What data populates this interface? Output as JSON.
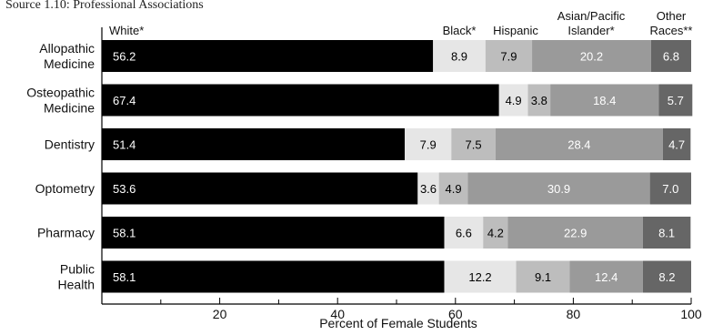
{
  "source_title": "Source 1.10: Professional Associations",
  "chart_data": {
    "type": "bar",
    "orientation": "horizontal",
    "stacked": true,
    "categories": [
      [
        "Allopathic",
        "Medicine"
      ],
      [
        "Osteopathic",
        "Medicine"
      ],
      [
        "Dentistry"
      ],
      [
        "Optometry"
      ],
      [
        "Pharmacy"
      ],
      [
        "Public",
        "Health"
      ]
    ],
    "series": [
      {
        "name": [
          "White*"
        ],
        "values": [
          56.2,
          67.4,
          51.4,
          53.6,
          58.1,
          58.1
        ],
        "color": "#000000",
        "text_color": "#ffffff"
      },
      {
        "name": [
          "Black*"
        ],
        "values": [
          8.9,
          4.9,
          7.9,
          3.6,
          6.6,
          12.2
        ],
        "color": "#e6e6e6",
        "text_color": "#000000"
      },
      {
        "name": [
          "Hispanic"
        ],
        "values": [
          7.9,
          3.8,
          7.5,
          4.9,
          4.2,
          9.1
        ],
        "color": "#bdbdbd",
        "text_color": "#000000"
      },
      {
        "name": [
          "Asian/Pacific",
          "Islander*"
        ],
        "values": [
          20.2,
          18.4,
          28.4,
          30.9,
          22.9,
          12.4
        ],
        "color": "#9a9a9a",
        "text_color": "#ffffff"
      },
      {
        "name": [
          "Other",
          "Races**"
        ],
        "values": [
          6.8,
          5.7,
          4.7,
          7.0,
          8.1,
          8.2
        ],
        "color": "#666666",
        "text_color": "#ffffff"
      }
    ],
    "value_labels": [
      [
        "56.2",
        "8.9",
        "7.9",
        "20.2",
        "6.8"
      ],
      [
        "67.4",
        "4.9",
        "3.8",
        "18.4",
        "5.7"
      ],
      [
        "51.4",
        "7.9",
        "7.5",
        "28.4",
        "4.7"
      ],
      [
        "53.6",
        "3.6",
        "4.9",
        "30.9",
        "7.0"
      ],
      [
        "58.1",
        "6.6",
        "4.2",
        "22.9",
        "8.1"
      ],
      [
        "58.1",
        "12.2",
        "9.1",
        "12.4",
        "8.2"
      ]
    ],
    "xlabel": "Percent of Female Students",
    "xlim": [
      0,
      100
    ],
    "xticks": [
      20,
      40,
      60,
      80,
      100
    ],
    "legend_placement": "top"
  }
}
